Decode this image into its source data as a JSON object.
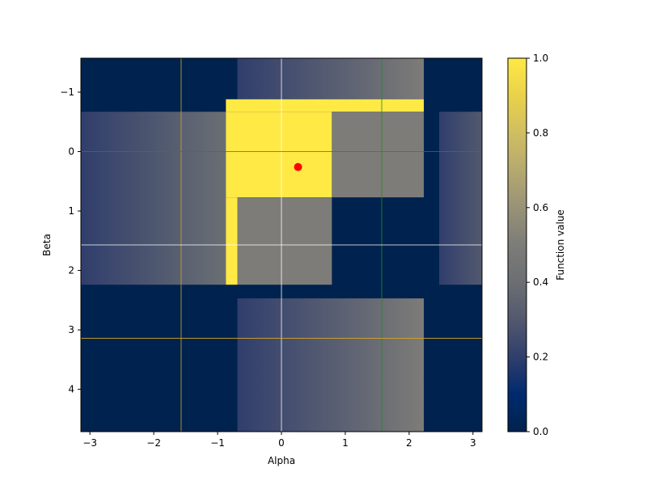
{
  "chart_data": {
    "type": "heatmap",
    "title": "",
    "xlabel": "Alpha",
    "ylabel": "Beta",
    "colorbar_label": "Function value",
    "colormap": "cividis",
    "xlim": [
      -3.14159,
      3.14159
    ],
    "ylim": [
      4.712,
      -1.571
    ],
    "x_ticks": [
      -3,
      -2,
      -1,
      0,
      1,
      2,
      3
    ],
    "x_tick_labels": [
      "−3",
      "−2",
      "−1",
      "0",
      "1",
      "2",
      "3"
    ],
    "y_ticks": [
      -1,
      0,
      1,
      2,
      3,
      4
    ],
    "y_tick_labels": [
      "−1",
      "0",
      "1",
      "2",
      "3",
      "4"
    ],
    "colorbar_range": [
      0,
      1
    ],
    "colorbar_ticks": [
      0.0,
      0.2,
      0.4,
      0.6,
      0.8,
      1.0
    ],
    "colorbar_tick_labels": [
      "0.0",
      "0.2",
      "0.4",
      "0.6",
      "0.8",
      "1.0"
    ],
    "regions": [
      {
        "x": [
          -0.87,
          2.23
        ],
        "y": [
          -0.88,
          -0.67
        ],
        "value": 1.0
      },
      {
        "x": [
          -0.87,
          0.79
        ],
        "y": [
          -0.67,
          0.77
        ],
        "value": 1.0
      },
      {
        "x": [
          -0.87,
          -0.69
        ],
        "y": [
          0.77,
          2.24
        ],
        "value": 1.0
      },
      {
        "x": [
          0.79,
          2.23
        ],
        "y": [
          -0.67,
          0.77
        ],
        "value": 0.5
      },
      {
        "x": [
          -0.69,
          0.79
        ],
        "y": [
          0.77,
          2.24
        ],
        "value": 0.5
      },
      {
        "x": [
          -0.69,
          2.23
        ],
        "y": [
          -1.571,
          -0.88
        ],
        "value_start": 0.2,
        "value_end": 0.5,
        "gradient": "x"
      },
      {
        "x": [
          -0.69,
          2.23
        ],
        "y": [
          2.47,
          4.712
        ],
        "value_start": 0.2,
        "value_end": 0.5,
        "gradient": "x"
      },
      {
        "x": [
          -3.14159,
          -0.87
        ],
        "y": [
          -0.67,
          2.24
        ],
        "value_start": 0.2,
        "value_end": 0.4,
        "gradient": "x"
      },
      {
        "x": [
          2.47,
          3.14159
        ],
        "y": [
          -0.67,
          2.24
        ],
        "value_start": 0.2,
        "value_end": 0.3,
        "gradient": "x"
      }
    ],
    "vlines": [
      {
        "x": -1.571,
        "color": "#daa520"
      },
      {
        "x": 0,
        "color": "#ffffff"
      },
      {
        "x": 1.571,
        "color": "#228b22"
      }
    ],
    "hlines": [
      {
        "y": 0,
        "color": "#228b22"
      },
      {
        "y": 1.571,
        "color": "#ffffff"
      },
      {
        "y": 3.142,
        "color": "#daa520"
      }
    ],
    "marker": {
      "x": 0.26,
      "y": 0.26,
      "color": "#ff0000"
    }
  }
}
